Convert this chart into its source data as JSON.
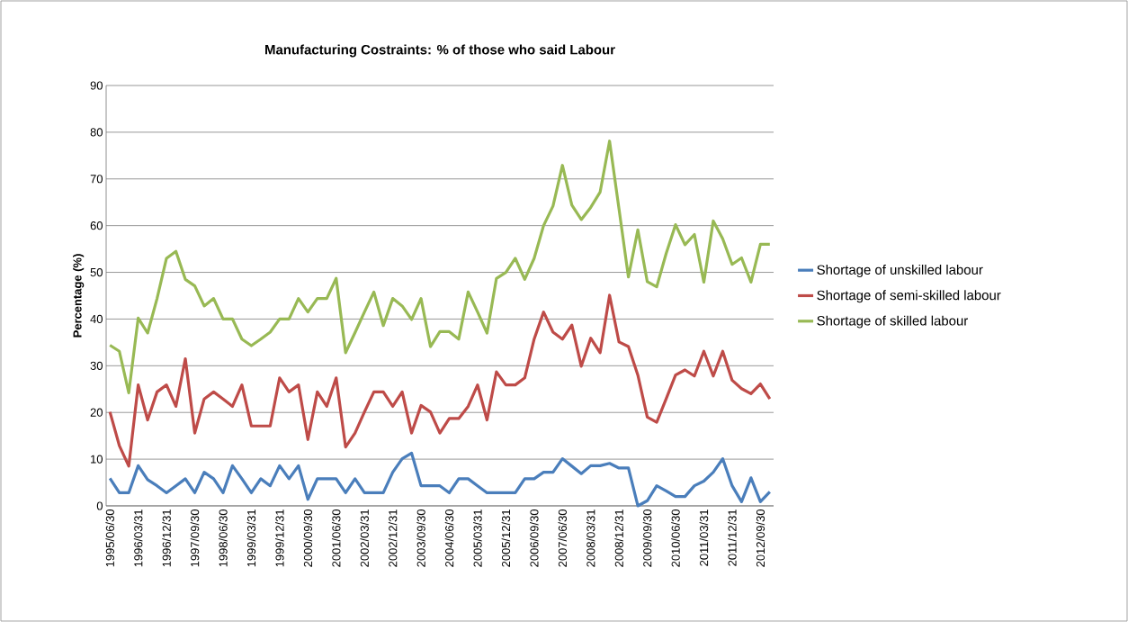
{
  "chart_data": {
    "type": "line",
    "title": "Manufacturing Costraints:  % of those who said Labour",
    "ylabel": "Percentage (%)",
    "categories": [
      "1995/06/30",
      null,
      null,
      "1996/03/31",
      null,
      null,
      "1996/12/31",
      null,
      null,
      "1997/09/30",
      null,
      null,
      "1998/06/30",
      null,
      null,
      "1999/03/31",
      null,
      null,
      "1999/12/31",
      null,
      null,
      "2000/09/30",
      null,
      null,
      "2001/06/30",
      null,
      null,
      "2002/03/31",
      null,
      null,
      "2002/12/31",
      null,
      null,
      "2003/09/30",
      null,
      null,
      "2004/06/30",
      null,
      null,
      "2005/03/31",
      null,
      null,
      "2005/12/31",
      null,
      null,
      "2006/09/30",
      null,
      null,
      "2007/06/30",
      null,
      null,
      "2008/03/31",
      null,
      null,
      "2008/12/31",
      null,
      null,
      "2009/09/30",
      null,
      null,
      "2010/06/30",
      null,
      null,
      "2011/03/31",
      null,
      null,
      "2011/12/31",
      null,
      null,
      "2012/09/30",
      null
    ],
    "series": [
      {
        "name": "Shortage of unskilled labour",
        "color": "#4a7ebb",
        "values": [
          5.9,
          2.8,
          2.8,
          8.6,
          5.6,
          4.3,
          2.8,
          4.3,
          5.8,
          2.8,
          7.2,
          5.8,
          2.8,
          8.6,
          5.8,
          2.8,
          5.8,
          4.3,
          8.6,
          5.8,
          8.6,
          1.4,
          5.8,
          5.8,
          5.8,
          2.8,
          5.8,
          2.8,
          2.8,
          2.8,
          7.2,
          10.1,
          11.3,
          4.3,
          4.3,
          4.3,
          2.8,
          5.8,
          5.8,
          4.3,
          2.8,
          2.8,
          2.8,
          2.8,
          5.8,
          5.8,
          7.2,
          7.2,
          10.1,
          8.5,
          6.9,
          8.6,
          8.6,
          9.1,
          8.1,
          8.1,
          0,
          1.1,
          4.3,
          3.2,
          2,
          2,
          4.3,
          5.3,
          7.2,
          10.1,
          4.3,
          0.9,
          6,
          0.9,
          3
        ]
      },
      {
        "name": "Shortage of semi-skilled labour",
        "color": "#be4b48",
        "values": [
          20.1,
          12.9,
          8.5,
          25.9,
          18.4,
          24.4,
          25.9,
          21.3,
          31.5,
          15.6,
          22.9,
          24.4,
          22.9,
          21.3,
          25.9,
          17.1,
          17.1,
          17.1,
          27.4,
          24.4,
          25.9,
          14.2,
          24.4,
          21.3,
          27.4,
          12.6,
          15.6,
          20.1,
          24.4,
          24.4,
          21.3,
          24.4,
          15.6,
          21.5,
          20.1,
          15.6,
          18.7,
          18.7,
          21.3,
          25.9,
          18.4,
          28.7,
          25.9,
          25.9,
          27.4,
          35.7,
          41.5,
          37.2,
          35.7,
          38.7,
          29.9,
          35.9,
          32.8,
          45.1,
          35.1,
          34.1,
          28,
          19,
          17.9,
          22.9,
          28,
          29.1,
          27.8,
          33.1,
          27.8,
          33.1,
          26.9,
          25.1,
          24,
          26.1,
          22.9
        ]
      },
      {
        "name": "Shortage of skilled labour",
        "color": "#98b954",
        "values": [
          34.4,
          33.1,
          24.2,
          40.2,
          37,
          44.4,
          53,
          54.5,
          48.5,
          47.1,
          42.8,
          44.4,
          40,
          40,
          35.7,
          34.3,
          35.7,
          37.2,
          40,
          40,
          44.4,
          41.5,
          44.4,
          44.4,
          48.7,
          32.8,
          37.1,
          41.5,
          45.8,
          38.6,
          44.4,
          42.8,
          39.9,
          44.4,
          34.1,
          37.3,
          37.3,
          35.7,
          45.8,
          41.5,
          37,
          48.7,
          50,
          53,
          48.5,
          53,
          60,
          64.2,
          72.9,
          64.4,
          61.3,
          63.9,
          67.2,
          78.1,
          63.6,
          49,
          59.1,
          48,
          46.9,
          54,
          60.2,
          55.9,
          58.1,
          47.9,
          61,
          57.2,
          51.7,
          53.1,
          47.9,
          56,
          56
        ]
      }
    ],
    "ylim": [
      0,
      90
    ],
    "yticks": [
      0,
      10,
      20,
      30,
      40,
      50,
      60,
      70,
      80,
      90
    ],
    "grid": "y",
    "legend": "right",
    "marker": "none",
    "line_style": "solid"
  }
}
